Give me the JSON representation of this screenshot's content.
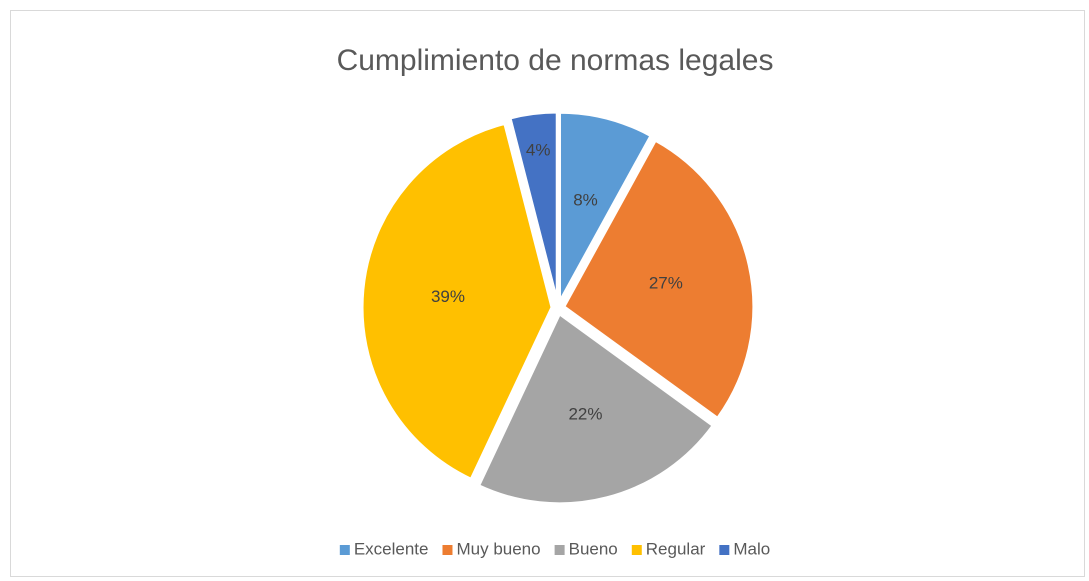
{
  "chart_data": {
    "type": "pie",
    "title": "Cumplimiento de normas  legales",
    "categories": [
      "Excelente",
      "Muy bueno",
      "Bueno",
      "Regular",
      "Malo"
    ],
    "values": [
      8,
      27,
      22,
      39,
      4
    ],
    "value_labels": [
      "8%",
      "27%",
      "22%",
      "39%",
      "4%"
    ],
    "colors": [
      "#5b9bd5",
      "#ed7d31",
      "#a5a5a5",
      "#ffc000",
      "#4472c4"
    ],
    "legend": "bottom"
  }
}
